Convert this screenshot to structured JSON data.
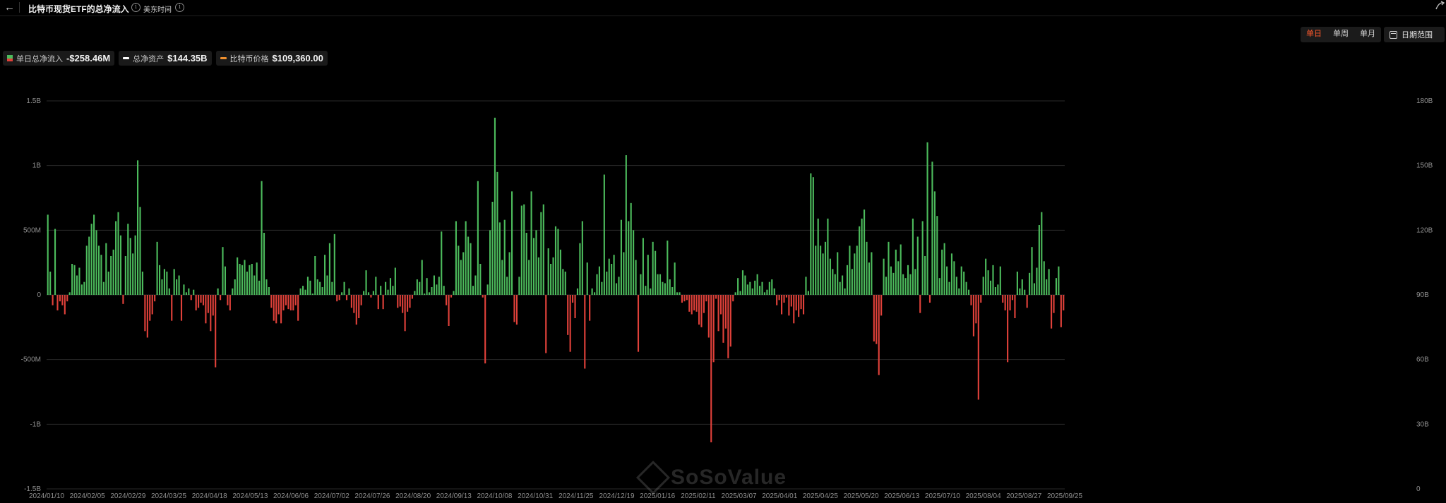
{
  "header": {
    "title": "比特币现货ETF的总净流入",
    "timezone": "美东时间"
  },
  "toolbar": {
    "day": "单日",
    "week": "单周",
    "month": "单月",
    "date_range": "日期范围"
  },
  "legend": {
    "inflow_label": "单日总净流入",
    "inflow_value": "-$258.46M",
    "assets_label": "总净资产",
    "assets_value": "$144.35B",
    "price_label": "比特币价格",
    "price_value": "$109,360.00"
  },
  "watermark": "SoSoValue",
  "colors": {
    "inflow_positive": "#4cbb5c",
    "inflow_negative": "#e0413a",
    "net_assets": "#ffffff",
    "btc_price": "#f0902e",
    "active_tab": "#ff5a2c"
  },
  "chart_data": {
    "type": "bar",
    "series_types": {
      "daily_net_inflow": "bar",
      "total_net_assets": "line",
      "btc_price": "line"
    },
    "left_axis": {
      "ylim": [
        -1.5,
        1.5
      ],
      "ticks": [
        "-1.5B",
        "-1B",
        "-500M",
        "0",
        "500M",
        "1B",
        "1.5B"
      ],
      "tick_values": [
        -1.5,
        -1,
        -0.5,
        0,
        0.5,
        1,
        1.5
      ]
    },
    "right_axis": {
      "ylim": [
        0,
        180
      ],
      "ticks": [
        "0",
        "30B",
        "60B",
        "90B",
        "120B",
        "150B",
        "180B"
      ],
      "tick_values": [
        0,
        30,
        60,
        90,
        120,
        150,
        180
      ]
    },
    "x_tick_labels": [
      "2024/01/10",
      "2024/02/05",
      "2024/02/29",
      "2024/03/25",
      "2024/04/18",
      "2024/05/13",
      "2024/06/06",
      "2024/07/02",
      "2024/07/26",
      "2024/08/20",
      "2024/09/13",
      "2024/10/08",
      "2024/10/31",
      "2024/11/25",
      "2024/12/19",
      "2025/01/16",
      "2025/02/11",
      "2025/03/07",
      "2025/04/01",
      "2025/04/25",
      "2025/05/20",
      "2025/06/13",
      "2025/07/10",
      "2025/08/04",
      "2025/08/27",
      "2025/09/25"
    ],
    "grid": true,
    "legend_position": "top-left",
    "daily_net_inflow": [
      0.62,
      0.18,
      -0.08,
      0.51,
      -0.12,
      -0.05,
      -0.08,
      -0.15,
      -0.05,
      0.02,
      0.24,
      0.23,
      0.15,
      0.21,
      0.08,
      0.1,
      0.38,
      0.45,
      0.55,
      0.62,
      0.5,
      0.38,
      0.31,
      0.1,
      0.4,
      0.18,
      0.3,
      0.35,
      0.57,
      0.64,
      0.46,
      -0.07,
      0.3,
      0.55,
      0.44,
      0.32,
      0.46,
      1.04,
      0.68,
      0.18,
      -0.28,
      -0.33,
      -0.2,
      -0.15,
      -0.05,
      0.41,
      0.23,
      0.12,
      0.2,
      0.18,
      0.05,
      -0.2,
      0.2,
      0.12,
      0.15,
      -0.2,
      0.08,
      0.02,
      0.05,
      -0.04,
      0.04,
      -0.12,
      -0.1,
      -0.06,
      -0.08,
      -0.22,
      -0.14,
      -0.28,
      -0.16,
      -0.56,
      0.05,
      -0.04,
      0.37,
      0.22,
      -0.08,
      -0.12,
      0.05,
      0.12,
      0.29,
      0.24,
      0.23,
      0.27,
      0.18,
      0.23,
      0.24,
      0.15,
      0.25,
      0.11,
      0.88,
      0.48,
      0.12,
      0.06,
      -0.1,
      -0.2,
      -0.22,
      -0.15,
      -0.22,
      -0.12,
      -0.08,
      -0.11,
      -0.12,
      -0.12,
      -0.08,
      -0.2,
      0.05,
      0.07,
      0.04,
      0.14,
      0.11,
      0.01,
      0.3,
      0.12,
      0.1,
      0.06,
      0.31,
      0.15,
      0.4,
      0.1,
      0.47,
      -0.05,
      -0.04,
      0.02,
      0.1,
      -0.04,
      0.05,
      -0.1,
      -0.14,
      -0.23,
      -0.18,
      -0.08,
      0.03,
      0.19,
      0.02,
      -0.02,
      0.03,
      0.14,
      -0.11,
      0.07,
      -0.11,
      0.1,
      0.04,
      0.13,
      0.07,
      0.21,
      -0.1,
      -0.09,
      -0.14,
      -0.28,
      -0.13,
      -0.1,
      -0.03,
      0.03,
      0.12,
      0.1,
      0.27,
      0.01,
      0.13,
      0.02,
      0.06,
      0.15,
      0.08,
      0.14,
      0.49,
      0.07,
      -0.08,
      -0.24,
      -0.02,
      0.03,
      0.57,
      0.38,
      0.27,
      0.33,
      0.57,
      0.45,
      0.4,
      0.07,
      0.15,
      0.88,
      0.24,
      -0.02,
      -0.53,
      0.08,
      0.5,
      0.72,
      1.37,
      0.95,
      0.56,
      0.27,
      0.58,
      0.14,
      0.33,
      0.8,
      -0.21,
      -0.23,
      0.14,
      0.69,
      0.7,
      0.48,
      0.27,
      0.8,
      0.44,
      0.5,
      0.29,
      0.64,
      0.7,
      -0.45,
      0.36,
      0.24,
      0.29,
      0.53,
      0.51,
      0.35,
      0.2,
      0.18,
      -0.31,
      -0.44,
      -0.06,
      -0.18,
      0.05,
      0.4,
      0.57,
      -0.57,
      0.25,
      -0.2,
      0.05,
      0.02,
      0.16,
      0.22,
      0.1,
      0.93,
      0.18,
      0.28,
      0.24,
      0.31,
      0.09,
      0.14,
      0.58,
      0.33,
      1.08,
      0.57,
      0.71,
      0.5,
      0.27,
      -0.44,
      0.16,
      0.44,
      0.07,
      0.31,
      0.05,
      0.41,
      0.34,
      0.16,
      0.16,
      0.1,
      0.09,
      0.42,
      0.12,
      0.06,
      0.25,
      0.02,
      0.02,
      -0.06,
      -0.05,
      -0.04,
      -0.13,
      -0.15,
      -0.12,
      -0.13,
      -0.23,
      -0.25,
      -0.14,
      -0.05,
      -0.33,
      -1.14,
      -0.52,
      -0.03,
      -0.28,
      -0.15,
      -0.37,
      -0.26,
      -0.49,
      -0.4,
      -0.05,
      0.02,
      0.13,
      0.03,
      0.19,
      0.15,
      0.08,
      0.1,
      0.05,
      0.11,
      0.16,
      0.07,
      0.1,
      0.02,
      0.04,
      0.1,
      0.12,
      0.05,
      -0.08,
      -0.04,
      -0.15,
      -0.06,
      -0.02,
      -0.16,
      -0.09,
      -0.22,
      -0.12,
      -0.17,
      -0.11,
      -0.15,
      0.14,
      0.03,
      0.94,
      0.91,
      0.38,
      0.59,
      0.38,
      0.32,
      0.41,
      0.59,
      0.28,
      0.2,
      0.16,
      0.33,
      0.1,
      0.15,
      0.05,
      0.23,
      0.38,
      0.2,
      0.32,
      0.38,
      0.53,
      0.59,
      0.66,
      0.41,
      0.25,
      0.33,
      -0.36,
      -0.38,
      -0.62,
      -0.16,
      0.28,
      0.14,
      0.41,
      0.22,
      0.17,
      0.35,
      0.26,
      0.39,
      0.16,
      0.13,
      0.23,
      0.16,
      0.59,
      0.2,
      0.45,
      -0.14,
      0.57,
      0.3,
      1.18,
      -0.06,
      1.03,
      0.8,
      0.61,
      0.13,
      0.35,
      0.4,
      0.22,
      0.1,
      0.32,
      0.26,
      0.14,
      0.05,
      0.22,
      0.18,
      0.1,
      0.04,
      -0.08,
      -0.32,
      -0.22,
      -0.81,
      -0.06,
      0.14,
      0.28,
      0.19,
      0.11,
      0.23,
      0.06,
      0.08,
      0.22,
      -0.06,
      -0.12,
      -0.52,
      -0.12,
      -0.04,
      -0.18,
      0.18,
      0.05,
      0.12,
      0.04,
      -0.1,
      0.17,
      0.37,
      0.09,
      0.21,
      0.54,
      0.64,
      0.26,
      0.12,
      0.2,
      -0.26,
      -0.14,
      0.13,
      0.22,
      -0.25,
      -0.12
    ]
  }
}
